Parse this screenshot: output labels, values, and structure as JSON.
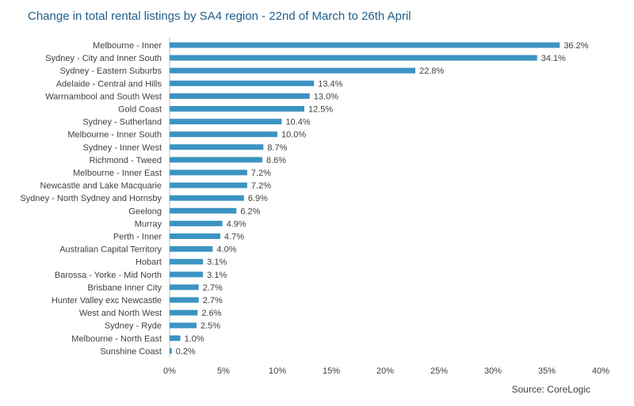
{
  "chart_data": {
    "type": "bar",
    "orientation": "horizontal",
    "title": "Change in total rental listings by SA4 region - 22nd of March to 26th April",
    "source": "Source:  CoreLogic",
    "bar_color": "#3c93c2",
    "categories": [
      "Melbourne - Inner",
      "Sydney - City and Inner South",
      "Sydney - Eastern Suburbs",
      "Adelaide - Central and Hills",
      "Warrnambool and South West",
      "Gold Coast",
      "Sydney - Sutherland",
      "Melbourne - Inner South",
      "Sydney - Inner West",
      "Richmond - Tweed",
      "Melbourne - Inner East",
      "Newcastle and Lake Macquarie",
      "Sydney - North Sydney and Hornsby",
      "Geelong",
      "Murray",
      "Perth - Inner",
      "Australian Capital Territory",
      "Hobart",
      "Barossa - Yorke - Mid North",
      "Brisbane Inner City",
      "Hunter Valley exc Newcastle",
      "West and North West",
      "Sydney - Ryde",
      "Melbourne - North East",
      "Sunshine Coast"
    ],
    "values": [
      36.2,
      34.1,
      22.8,
      13.4,
      13.0,
      12.5,
      10.4,
      10.0,
      8.7,
      8.6,
      7.2,
      7.2,
      6.9,
      6.2,
      4.9,
      4.7,
      4.0,
      3.1,
      3.1,
      2.7,
      2.7,
      2.6,
      2.5,
      1.0,
      0.2
    ],
    "value_labels": [
      "36.2%",
      "34.1%",
      "22.8%",
      "13.4%",
      "13.0%",
      "12.5%",
      "10.4%",
      "10.0%",
      "8.7%",
      "8.6%",
      "7.2%",
      "7.2%",
      "6.9%",
      "6.2%",
      "4.9%",
      "4.7%",
      "4.0%",
      "3.1%",
      "3.1%",
      "2.7%",
      "2.7%",
      "2.6%",
      "2.5%",
      "1.0%",
      "0.2%"
    ],
    "xlim": [
      0,
      40
    ],
    "x_ticks": [
      0,
      5,
      10,
      15,
      20,
      25,
      30,
      35,
      40
    ],
    "x_tick_labels": [
      "0%",
      "5%",
      "10%",
      "15%",
      "20%",
      "25%",
      "30%",
      "35%",
      "40%"
    ],
    "xlabel": "",
    "ylabel": "",
    "grid": false,
    "legend": "none"
  }
}
